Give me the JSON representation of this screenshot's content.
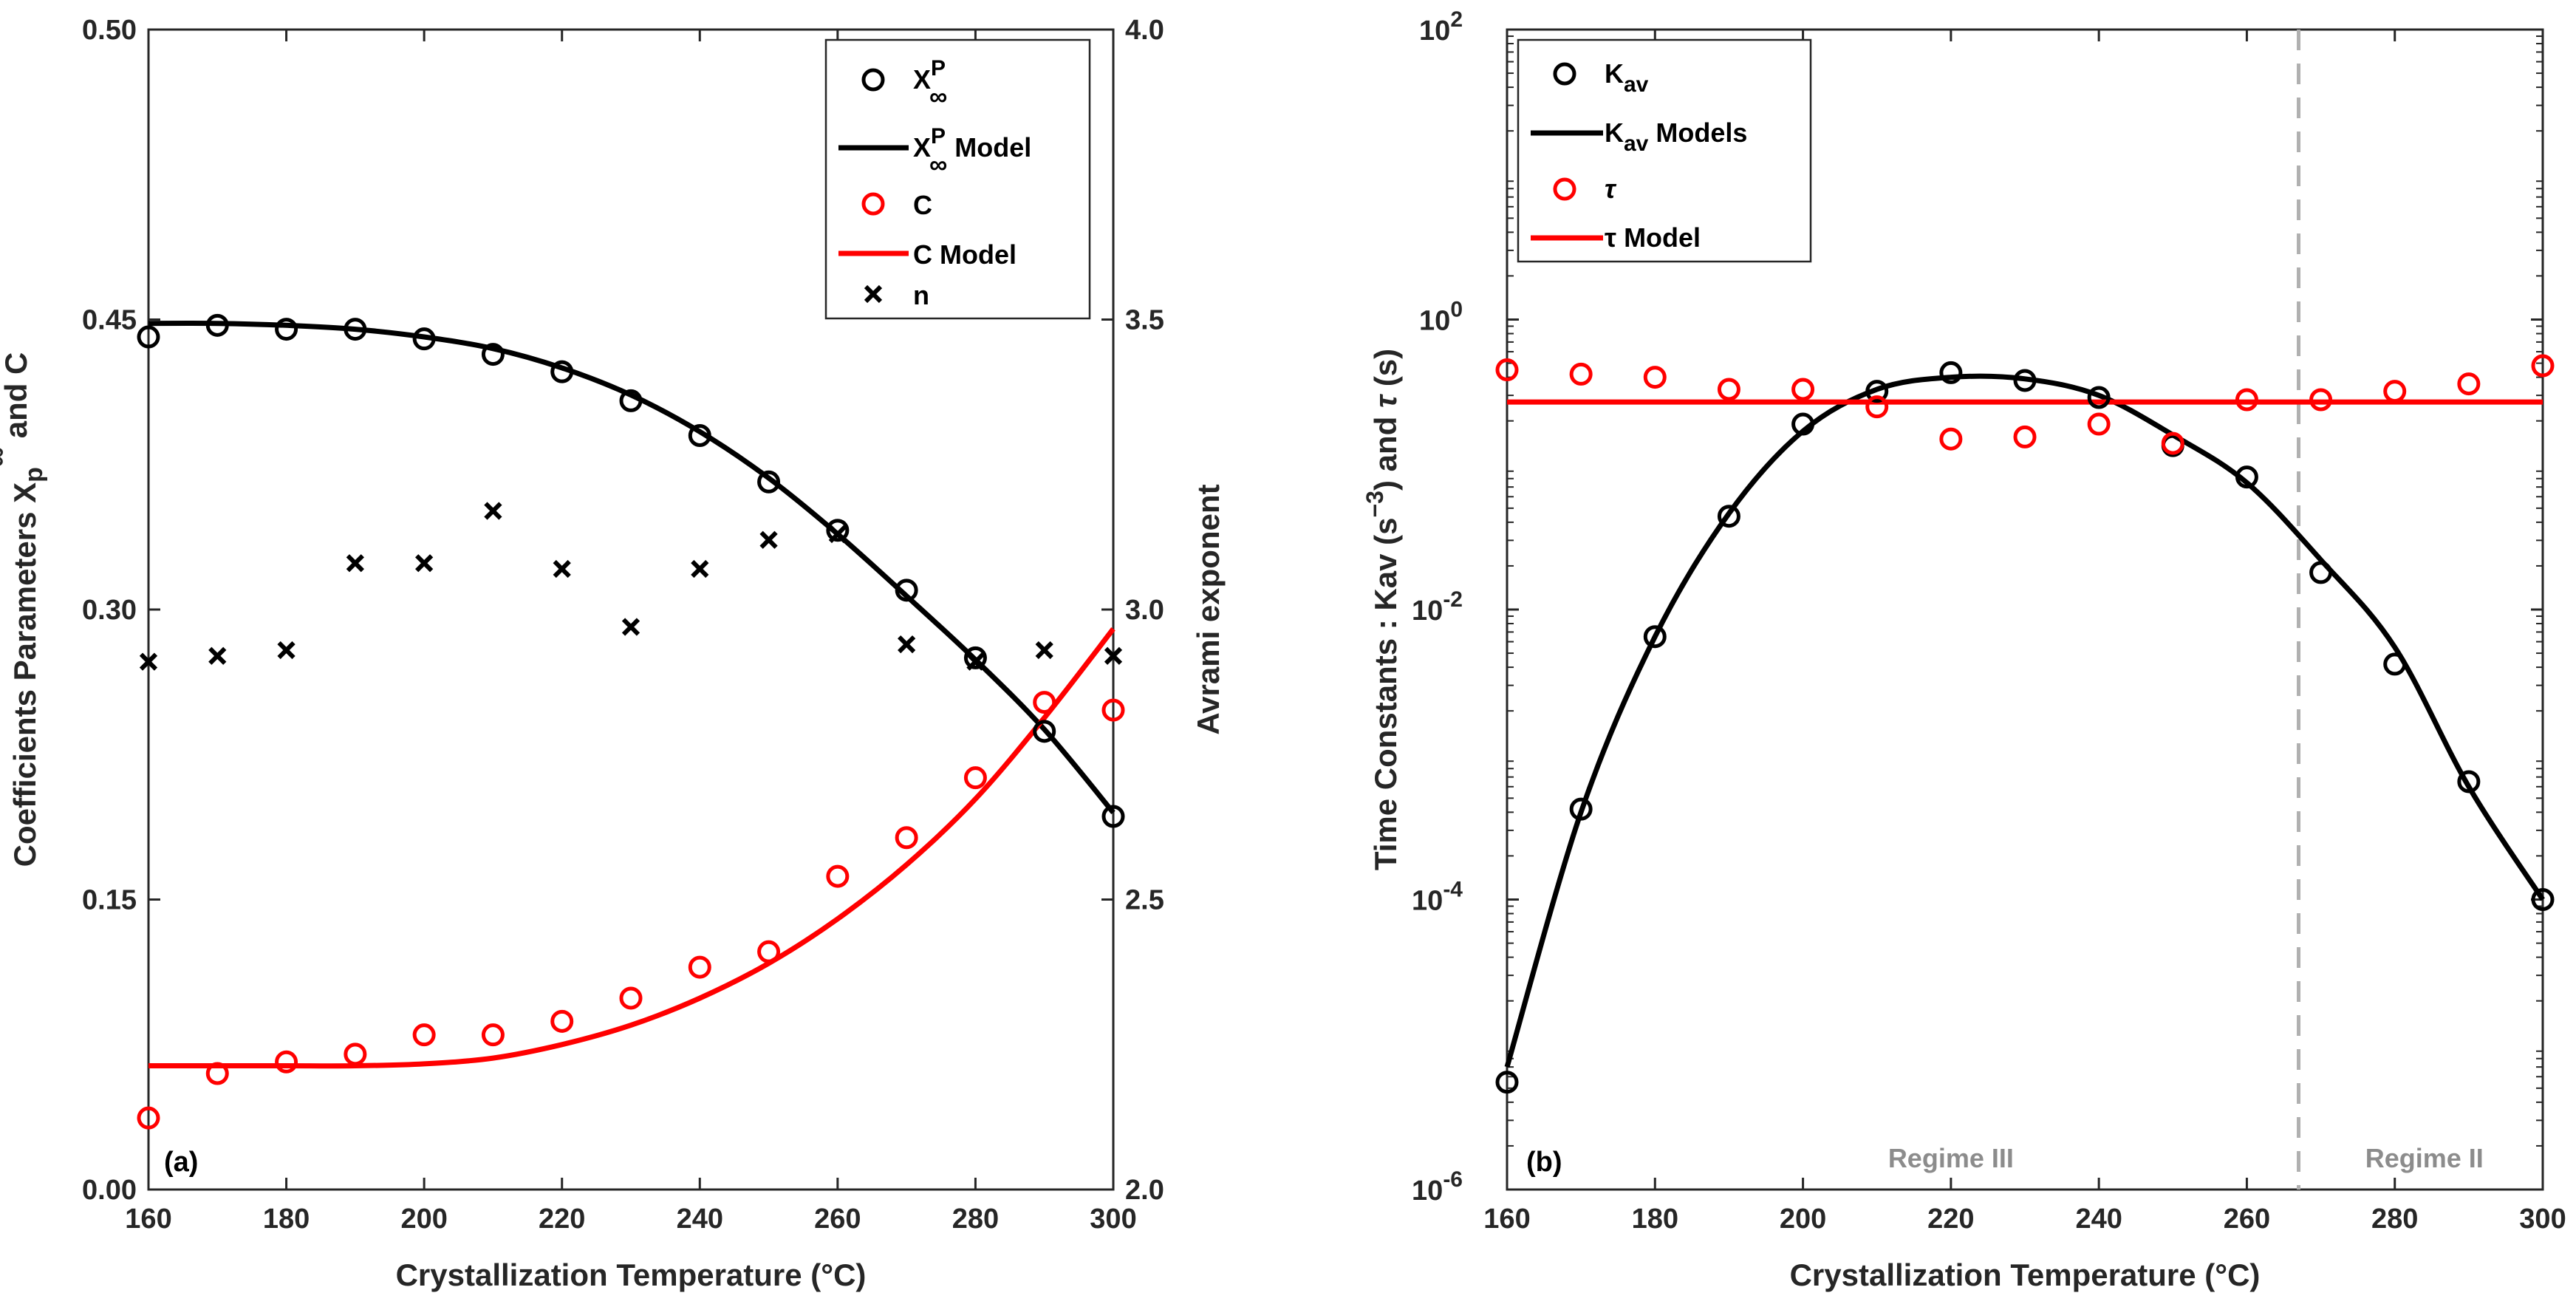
{
  "chart_data": [
    {
      "type": "scatter+line",
      "panel_label": "(a)",
      "xlabel": "Crystallization Temperature (°C)",
      "ylabel_left": "Coefficients Parameters X_p^∞ and C",
      "ylabel_right": "Avrami exponent",
      "xlim": [
        160,
        300
      ],
      "ylim_left": [
        0.0,
        0.5
      ],
      "ylim_right": [
        2.0,
        4.0
      ],
      "xticks": [
        "160",
        "180",
        "200",
        "220",
        "240",
        "260",
        "280",
        "300"
      ],
      "yticks_left": [
        "0.00",
        "0.15",
        "0.30",
        "0.45",
        "0.50"
      ],
      "yticks_right": [
        "2.0",
        "2.5",
        "3.0",
        "3.5",
        "4.0"
      ],
      "x": [
        160,
        170,
        180,
        190,
        200,
        210,
        220,
        230,
        240,
        250,
        260,
        270,
        280,
        290,
        300
      ],
      "series": [
        {
          "name": "X∞P",
          "kind": "marker-circle",
          "color": "#000000",
          "axis": "left",
          "values": [
            0.441,
            0.447,
            0.445,
            0.445,
            0.44,
            0.432,
            0.423,
            0.408,
            0.39,
            0.366,
            0.341,
            0.31,
            0.275,
            0.237,
            0.193
          ]
        },
        {
          "name": "X∞P Model",
          "kind": "line",
          "color": "#000000",
          "axis": "left",
          "values": [
            0.448,
            0.448,
            0.447,
            0.445,
            0.441,
            0.435,
            0.425,
            0.411,
            0.392,
            0.368,
            0.339,
            0.307,
            0.274,
            0.238,
            0.195
          ]
        },
        {
          "name": "C",
          "kind": "marker-circle",
          "color": "#ff0000",
          "axis": "left",
          "values": [
            0.037,
            0.06,
            0.066,
            0.07,
            0.08,
            0.08,
            0.087,
            0.099,
            0.115,
            0.123,
            0.162,
            0.182,
            0.213,
            0.252,
            0.248
          ]
        },
        {
          "name": "C Model",
          "kind": "line",
          "color": "#ff0000",
          "axis": "left",
          "values": [
            0.064,
            0.064,
            0.064,
            0.064,
            0.065,
            0.068,
            0.075,
            0.085,
            0.099,
            0.117,
            0.14,
            0.168,
            0.202,
            0.244,
            0.29
          ]
        },
        {
          "name": "n",
          "kind": "marker-x",
          "color": "#000000",
          "axis": "right",
          "values": [
            2.91,
            2.92,
            2.93,
            3.08,
            3.08,
            3.17,
            3.07,
            2.97,
            3.07,
            3.12,
            3.13,
            2.94,
            2.91,
            2.93,
            2.92
          ]
        }
      ],
      "legend": {
        "position": "top-right",
        "entries": [
          {
            "label": "X",
            "sup": "P",
            "sub": "∞",
            "suffix": ""
          },
          {
            "label": "X",
            "sup": "P",
            "sub": "∞",
            "suffix": " Model"
          },
          {
            "label": "C",
            "sup": "",
            "sub": "",
            "suffix": ""
          },
          {
            "label": "C Model",
            "sup": "",
            "sub": "",
            "suffix": ""
          },
          {
            "label": "n",
            "sup": "",
            "sub": "",
            "suffix": ""
          }
        ]
      }
    },
    {
      "type": "scatter+line",
      "panel_label": "(b)",
      "xlabel": "Crystallization Temperature (°C)",
      "ylabel": "Time Constants : Kav (s^-3) and τ (s)",
      "yscale": "log",
      "xlim": [
        160,
        300
      ],
      "ylim": [
        1e-06,
        100
      ],
      "xticks": [
        "160",
        "180",
        "200",
        "220",
        "240",
        "260",
        "280",
        "300"
      ],
      "yticks": [
        {
          "base": "10",
          "exp": "2",
          "value": 100
        },
        {
          "base": "10",
          "exp": "0",
          "value": 1
        },
        {
          "base": "10",
          "exp": "-2",
          "value": 0.01
        },
        {
          "base": "10",
          "exp": "-4",
          "value": 0.0001
        },
        {
          "base": "10",
          "exp": "-6",
          "value": 1e-06
        }
      ],
      "x": [
        160,
        170,
        180,
        190,
        200,
        210,
        220,
        230,
        240,
        250,
        260,
        270,
        280,
        290,
        300
      ],
      "series": [
        {
          "name": "Kav",
          "kind": "marker-circle",
          "color": "#000000",
          "values": [
            5.5e-06,
            0.00042,
            0.0065,
            0.044,
            0.19,
            0.32,
            0.43,
            0.38,
            0.29,
            0.135,
            0.082,
            0.018,
            0.0042,
            0.00065,
            0.0001
          ]
        },
        {
          "name": "Kav Models",
          "kind": "line",
          "color": "#000000",
          "values": [
            7e-06,
            0.0004,
            0.0065,
            0.046,
            0.17,
            0.33,
            0.4,
            0.39,
            0.3,
            0.16,
            0.075,
            0.022,
            0.0055,
            0.0006,
            0.0001
          ]
        },
        {
          "name": "τ",
          "kind": "marker-circle",
          "color": "#ff0000",
          "values": [
            0.45,
            0.42,
            0.4,
            0.33,
            0.33,
            0.25,
            0.15,
            0.155,
            0.19,
            0.14,
            0.28,
            0.28,
            0.32,
            0.36,
            0.48
          ]
        },
        {
          "name": "τ Model",
          "kind": "line",
          "color": "#ff0000",
          "values": [
            0.27,
            0.27,
            0.27,
            0.27,
            0.27,
            0.27,
            0.27,
            0.27,
            0.27,
            0.27,
            0.27,
            0.27,
            0.27,
            0.27,
            0.27
          ]
        }
      ],
      "regime_divider_x": 267,
      "annotations": [
        {
          "text": "Regime III",
          "x": 220
        },
        {
          "text": "Regime II",
          "x": 284
        }
      ],
      "legend": {
        "position": "top-left",
        "entries": [
          {
            "label": "K",
            "sub": "av",
            "suffix": ""
          },
          {
            "label": "K",
            "sub": "av",
            "suffix": " Models"
          },
          {
            "label": "τ",
            "sub": "",
            "suffix": ""
          },
          {
            "label": "τ Model",
            "sub": "",
            "suffix": ""
          }
        ]
      }
    }
  ]
}
